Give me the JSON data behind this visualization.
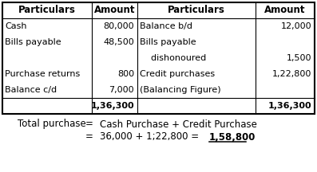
{
  "header_left1": "Particulars",
  "header_left2": "Amount",
  "header_right1": "Particulars",
  "header_right2": "Amount",
  "left_particulars": [
    "Cash",
    "Bills payable",
    "",
    "Purchase returns",
    "Balance c/d",
    ""
  ],
  "left_amounts": [
    "80,000",
    "48,500",
    "",
    "800",
    "7,000",
    "1,36,300"
  ],
  "right_particulars": [
    "Balance b/d",
    "Bills payable",
    "    dishonoured",
    "Credit purchases",
    "(Balancing Figure)",
    ""
  ],
  "right_amounts": [
    "12,000",
    "",
    "1,500",
    "1,22,800",
    "",
    "1,36,300"
  ],
  "formula_line1_left": "Total purchase",
  "formula_line1_eq": "=",
  "formula_line1_right": "Cash Purchase + Credit Purchase",
  "formula_line2_eq": "=",
  "formula_line2_expr": "36,000 + 1;22,800 = ",
  "formula_line2_result": "1,58,800",
  "bg_color": "#ffffff",
  "text_color": "#000000",
  "fs_header": 8.5,
  "fs_body": 8.0,
  "fs_formula": 8.5
}
